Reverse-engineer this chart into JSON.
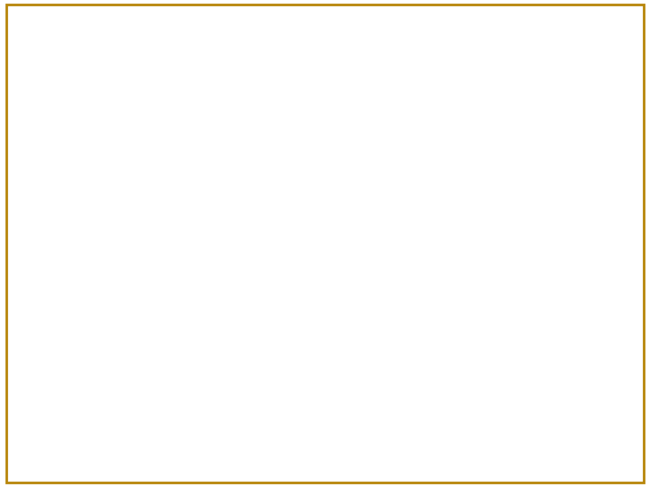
{
  "bg_color": "#ffffff",
  "yellow_bg": "#ffff99",
  "border_color": "#b8860b",
  "text_color": "#2e4480",
  "green_color": "#007700",
  "fig_width": 7.2,
  "fig_height": 5.4,
  "dpi": 100
}
